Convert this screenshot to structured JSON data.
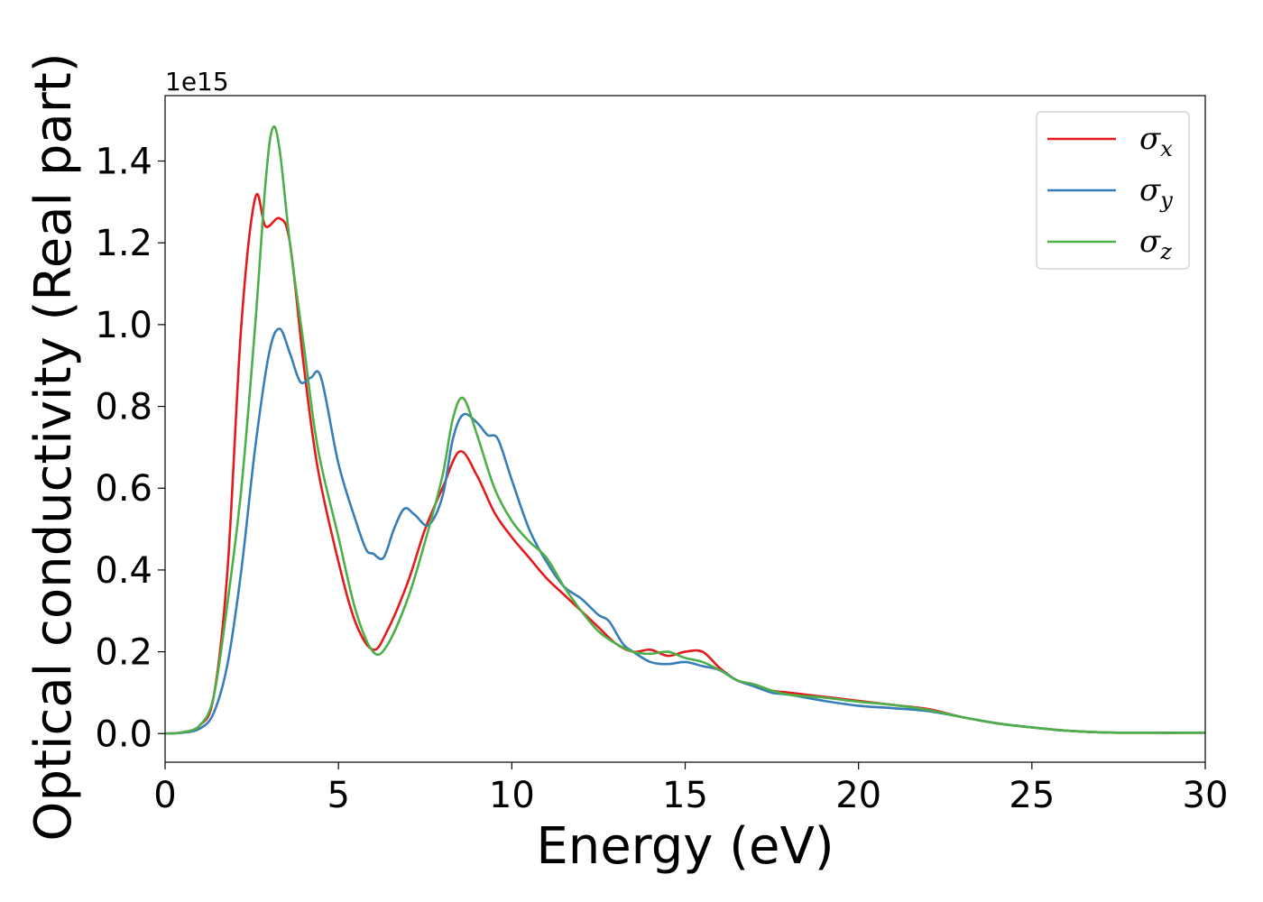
{
  "chart_data": {
    "type": "line",
    "xlabel": "Energy (eV)",
    "ylabel": "Optical conductivity (Real part)",
    "y_offset_label": "1e15",
    "xlim": [
      0,
      30
    ],
    "ylim": [
      -0.07,
      1.56
    ],
    "x_ticks": [
      0,
      5,
      10,
      15,
      20,
      25,
      30
    ],
    "y_ticks": [
      0.0,
      0.2,
      0.4,
      0.6,
      0.8,
      1.0,
      1.2,
      1.4
    ],
    "x_tick_labels": [
      "0",
      "5",
      "10",
      "15",
      "20",
      "25",
      "30"
    ],
    "y_tick_labels": [
      "0.0",
      "0.2",
      "0.4",
      "0.6",
      "0.8",
      "1.0",
      "1.2",
      "1.4"
    ],
    "grid": false,
    "legend_position": "top-right",
    "series": [
      {
        "symbol": "σ",
        "subscript": "x",
        "color": "#e41a1c",
        "points": [
          [
            0,
            0
          ],
          [
            0.5,
            0.003
          ],
          [
            1.0,
            0.02
          ],
          [
            1.4,
            0.09
          ],
          [
            1.8,
            0.4
          ],
          [
            2.2,
            1.0
          ],
          [
            2.6,
            1.31
          ],
          [
            2.9,
            1.24
          ],
          [
            3.3,
            1.26
          ],
          [
            3.6,
            1.2
          ],
          [
            4.0,
            0.9
          ],
          [
            4.4,
            0.65
          ],
          [
            5.0,
            0.42
          ],
          [
            5.5,
            0.27
          ],
          [
            6.0,
            0.205
          ],
          [
            6.4,
            0.25
          ],
          [
            7.0,
            0.37
          ],
          [
            7.5,
            0.5
          ],
          [
            8.0,
            0.6
          ],
          [
            8.5,
            0.69
          ],
          [
            9.0,
            0.63
          ],
          [
            9.5,
            0.54
          ],
          [
            10.0,
            0.48
          ],
          [
            10.5,
            0.43
          ],
          [
            11.0,
            0.38
          ],
          [
            11.5,
            0.34
          ],
          [
            12.0,
            0.3
          ],
          [
            12.5,
            0.26
          ],
          [
            13.0,
            0.22
          ],
          [
            13.5,
            0.2
          ],
          [
            14.0,
            0.205
          ],
          [
            14.5,
            0.19
          ],
          [
            15.0,
            0.2
          ],
          [
            15.5,
            0.2
          ],
          [
            16.0,
            0.16
          ],
          [
            16.5,
            0.13
          ],
          [
            17.0,
            0.12
          ],
          [
            17.5,
            0.105
          ],
          [
            18.0,
            0.1
          ],
          [
            19.0,
            0.09
          ],
          [
            20.0,
            0.08
          ],
          [
            21.0,
            0.07
          ],
          [
            22.0,
            0.06
          ],
          [
            23.0,
            0.04
          ],
          [
            24.0,
            0.025
          ],
          [
            25.0,
            0.015
          ],
          [
            26.0,
            0.007
          ],
          [
            27.0,
            0.003
          ],
          [
            28.0,
            0.002
          ],
          [
            30.0,
            0.002
          ]
        ]
      },
      {
        "symbol": "σ",
        "subscript": "y",
        "color": "#377eb8",
        "points": [
          [
            0,
            0
          ],
          [
            0.5,
            0.002
          ],
          [
            1.0,
            0.012
          ],
          [
            1.4,
            0.05
          ],
          [
            1.8,
            0.17
          ],
          [
            2.2,
            0.4
          ],
          [
            2.6,
            0.7
          ],
          [
            3.0,
            0.93
          ],
          [
            3.3,
            0.99
          ],
          [
            3.6,
            0.93
          ],
          [
            3.9,
            0.86
          ],
          [
            4.2,
            0.87
          ],
          [
            4.5,
            0.87
          ],
          [
            5.0,
            0.66
          ],
          [
            5.5,
            0.52
          ],
          [
            5.8,
            0.45
          ],
          [
            6.0,
            0.44
          ],
          [
            6.3,
            0.43
          ],
          [
            6.6,
            0.5
          ],
          [
            6.9,
            0.55
          ],
          [
            7.2,
            0.535
          ],
          [
            7.6,
            0.51
          ],
          [
            8.0,
            0.58
          ],
          [
            8.3,
            0.72
          ],
          [
            8.6,
            0.78
          ],
          [
            9.0,
            0.76
          ],
          [
            9.3,
            0.73
          ],
          [
            9.6,
            0.72
          ],
          [
            10.0,
            0.62
          ],
          [
            10.5,
            0.5
          ],
          [
            11.0,
            0.42
          ],
          [
            11.5,
            0.36
          ],
          [
            12.0,
            0.33
          ],
          [
            12.5,
            0.29
          ],
          [
            12.8,
            0.275
          ],
          [
            13.2,
            0.22
          ],
          [
            13.5,
            0.2
          ],
          [
            14.0,
            0.175
          ],
          [
            14.5,
            0.17
          ],
          [
            15.0,
            0.175
          ],
          [
            15.5,
            0.165
          ],
          [
            16.0,
            0.155
          ],
          [
            16.5,
            0.13
          ],
          [
            17.0,
            0.115
          ],
          [
            17.5,
            0.1
          ],
          [
            18.0,
            0.095
          ],
          [
            19.0,
            0.08
          ],
          [
            20.0,
            0.068
          ],
          [
            21.0,
            0.062
          ],
          [
            22.0,
            0.055
          ],
          [
            23.0,
            0.04
          ],
          [
            24.0,
            0.025
          ],
          [
            25.0,
            0.015
          ],
          [
            26.0,
            0.007
          ],
          [
            27.0,
            0.003
          ],
          [
            28.0,
            0.002
          ],
          [
            30.0,
            0.002
          ]
        ]
      },
      {
        "symbol": "σ",
        "subscript": "z",
        "color": "#4daf4a",
        "points": [
          [
            0,
            0
          ],
          [
            0.5,
            0.003
          ],
          [
            1.0,
            0.02
          ],
          [
            1.4,
            0.09
          ],
          [
            1.8,
            0.32
          ],
          [
            2.2,
            0.6
          ],
          [
            2.6,
            1.0
          ],
          [
            2.9,
            1.35
          ],
          [
            3.1,
            1.48
          ],
          [
            3.3,
            1.43
          ],
          [
            3.6,
            1.2
          ],
          [
            4.0,
            0.95
          ],
          [
            4.4,
            0.7
          ],
          [
            5.0,
            0.48
          ],
          [
            5.5,
            0.3
          ],
          [
            6.0,
            0.2
          ],
          [
            6.4,
            0.215
          ],
          [
            7.0,
            0.33
          ],
          [
            7.5,
            0.47
          ],
          [
            8.0,
            0.63
          ],
          [
            8.3,
            0.77
          ],
          [
            8.6,
            0.82
          ],
          [
            9.0,
            0.73
          ],
          [
            9.5,
            0.6
          ],
          [
            10.0,
            0.52
          ],
          [
            10.5,
            0.47
          ],
          [
            11.0,
            0.43
          ],
          [
            11.5,
            0.36
          ],
          [
            12.0,
            0.3
          ],
          [
            12.5,
            0.25
          ],
          [
            13.0,
            0.22
          ],
          [
            13.5,
            0.2
          ],
          [
            14.0,
            0.195
          ],
          [
            14.5,
            0.2
          ],
          [
            15.0,
            0.185
          ],
          [
            15.5,
            0.175
          ],
          [
            16.0,
            0.155
          ],
          [
            16.5,
            0.13
          ],
          [
            17.0,
            0.12
          ],
          [
            17.5,
            0.105
          ],
          [
            18.0,
            0.095
          ],
          [
            19.0,
            0.088
          ],
          [
            20.0,
            0.078
          ],
          [
            21.0,
            0.07
          ],
          [
            22.0,
            0.058
          ],
          [
            23.0,
            0.04
          ],
          [
            24.0,
            0.025
          ],
          [
            25.0,
            0.015
          ],
          [
            26.0,
            0.007
          ],
          [
            27.0,
            0.003
          ],
          [
            28.0,
            0.002
          ],
          [
            30.0,
            0.002
          ]
        ]
      }
    ]
  }
}
